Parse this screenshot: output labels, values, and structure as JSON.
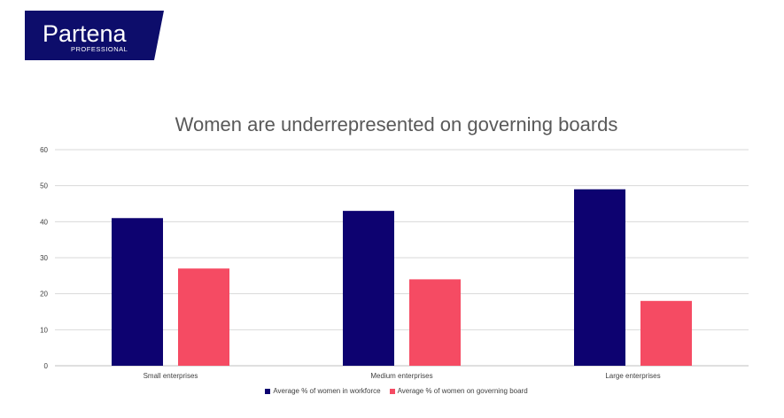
{
  "logo": {
    "brand": "Partena",
    "tagline": "PROFESSIONAL",
    "background_color": "#0d0d6b",
    "text_color": "#ffffff"
  },
  "chart_data": {
    "type": "bar",
    "title": "Women are underrepresented on governing boards",
    "xlabel": "",
    "ylabel": "",
    "categories": [
      "Small enterprises",
      "Medium enterprises",
      "Large enterprises"
    ],
    "series": [
      {
        "name": "Average % of women in workforce",
        "values": [
          41,
          43,
          49
        ],
        "color": "#0d0270"
      },
      {
        "name": "Average % of women on governing board",
        "values": [
          27,
          24,
          18
        ],
        "color": "#f54b63"
      }
    ],
    "ylim": [
      0,
      60
    ],
    "yticks": [
      "0",
      "10",
      "20",
      "30",
      "40",
      "50",
      "60"
    ],
    "grid": true,
    "legend_position": "bottom"
  }
}
